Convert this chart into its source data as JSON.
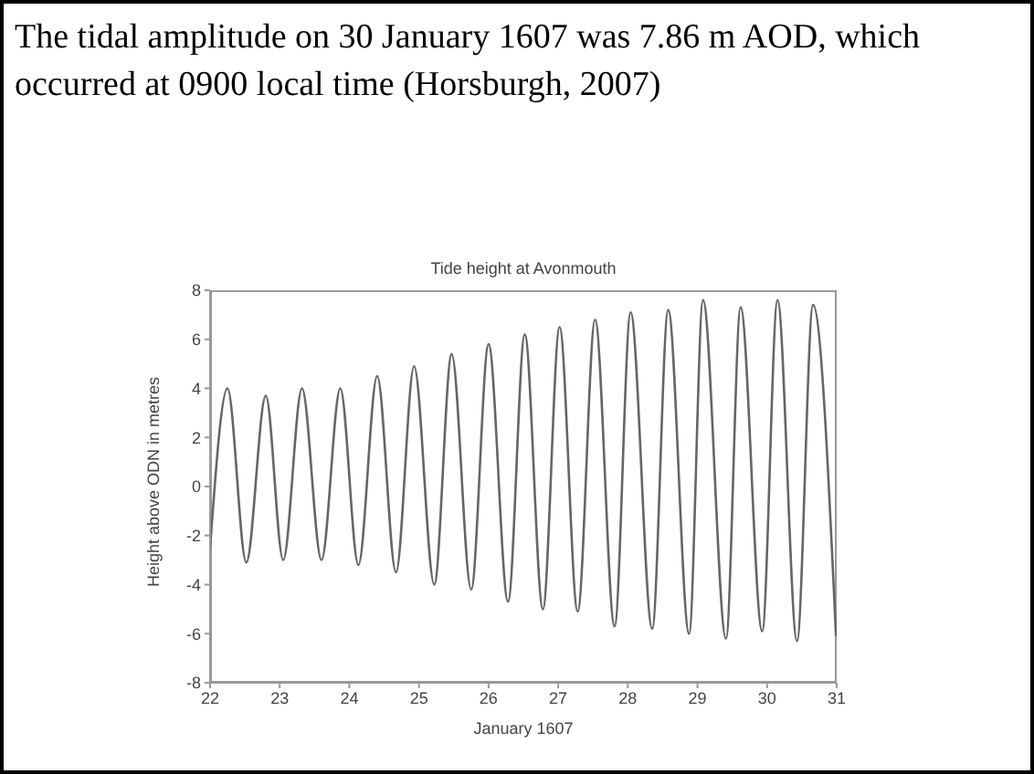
{
  "chart_data": {
    "type": "line",
    "title": "Tide height at Avonmouth",
    "xlabel": "January 1607",
    "ylabel": "Height above ODN in metres",
    "annotations": [
      "The tidal amplitude on 30 January 1607 was 7.86 m AOD, which occurred at 0900 local time (Horsburgh, 2007)"
    ],
    "x": [
      22.0,
      22.25,
      22.52,
      22.8,
      23.05,
      23.32,
      23.6,
      23.87,
      24.13,
      24.4,
      24.67,
      24.93,
      25.22,
      25.47,
      25.75,
      26.0,
      26.28,
      26.52,
      26.78,
      27.02,
      27.28,
      27.53,
      27.81,
      28.04,
      28.35,
      28.58,
      28.88,
      29.08,
      29.41,
      29.62,
      29.93,
      30.15,
      30.43,
      30.66,
      30.99
    ],
    "series": [
      {
        "color": "#666666",
        "values": [
          -2.5,
          4.0,
          -3.1,
          3.7,
          -3.0,
          4.0,
          -3.0,
          4.0,
          -3.2,
          4.5,
          -3.5,
          4.9,
          -4.0,
          5.4,
          -4.2,
          5.8,
          -4.7,
          6.2,
          -5.0,
          6.5,
          -5.1,
          6.8,
          -5.7,
          7.1,
          -5.8,
          7.2,
          -6.0,
          7.6,
          -6.2,
          7.3,
          -5.9,
          7.6,
          -6.3,
          7.4,
          -6.1
        ]
      }
    ],
    "xlim": [
      22,
      31
    ],
    "xticks": [
      22,
      23,
      24,
      25,
      26,
      27,
      28,
      29,
      30,
      31
    ],
    "ylim": [
      -8,
      8
    ],
    "yticks": [
      -8,
      -6,
      -4,
      -2,
      0,
      2,
      4,
      6,
      8
    ],
    "grid": false,
    "legend": false,
    "marker": "none",
    "line_style": "solid"
  }
}
